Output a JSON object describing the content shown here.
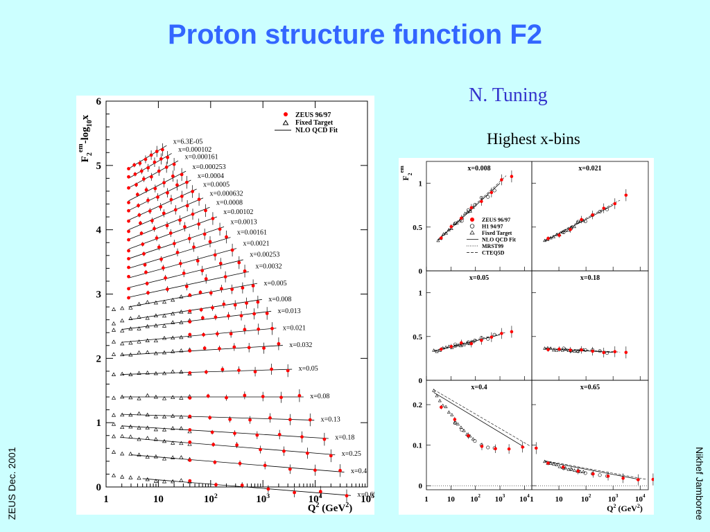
{
  "page": {
    "title": "Proton structure function F2",
    "author": "N. Tuning",
    "subtitle": "Highest x-bins",
    "left_footer": "ZEUS Dec. 2001",
    "right_footer": "Nikhef Jamboree"
  },
  "chart_data": [
    {
      "type": "scatter",
      "ylabel": "F2em-log10x",
      "xlabel": "Q2 (GeV2)",
      "xscale": "log",
      "xlim": [
        1,
        100000
      ],
      "ylim": [
        0,
        6
      ],
      "xticks": [
        "1",
        "10",
        "10^2",
        "10^3",
        "10^4",
        "10^5"
      ],
      "yticks": [
        "0",
        "1",
        "2",
        "3",
        "4",
        "5",
        "6"
      ],
      "legend": {
        "placement": "top-right",
        "entries": [
          "ZEUS 96/97",
          "Fixed Target",
          "NLO QCD Fit"
        ]
      },
      "colors": {
        "zeus": "#ff0000",
        "fixed": "#000000",
        "fit": "#000000"
      },
      "bins": [
        {
          "x": "x=6.3E-05",
          "q2": [
            2.7,
            12
          ],
          "offset": 5.1
        },
        {
          "x": "x=0.000102",
          "q2": [
            2.7,
            15
          ],
          "offset": 4.95
        },
        {
          "x": "x=0.000161",
          "q2": [
            2.7,
            20
          ],
          "offset": 4.8
        },
        {
          "x": "x=0.000253",
          "q2": [
            2.7,
            28
          ],
          "offset": 4.6
        },
        {
          "x": "x=0.0004",
          "q2": [
            2.7,
            35
          ],
          "offset": 4.45
        },
        {
          "x": "x=0.0005",
          "q2": [
            2.7,
            45
          ],
          "offset": 4.3
        },
        {
          "x": "x=0.000632",
          "q2": [
            2.7,
            60
          ],
          "offset": 4.15
        },
        {
          "x": "x=0.0008",
          "q2": [
            2.7,
            80
          ],
          "offset": 4.0
        },
        {
          "x": "x=0.00102",
          "q2": [
            2.7,
            110
          ],
          "offset": 3.85
        },
        {
          "x": "x=0.0013",
          "q2": [
            2.7,
            150
          ],
          "offset": 3.7
        },
        {
          "x": "x=0.00161",
          "q2": [
            2.7,
            200
          ],
          "offset": 3.55
        },
        {
          "x": "x=0.0021",
          "q2": [
            2.7,
            260
          ],
          "offset": 3.4
        },
        {
          "x": "x=0.00253",
          "q2": [
            2.7,
            350
          ],
          "offset": 3.25
        },
        {
          "x": "x=0.0032",
          "q2": [
            2.7,
            450
          ],
          "offset": 3.1
        },
        {
          "x": "x=0.005",
          "q2": [
            2.7,
            650
          ],
          "offset": 2.95
        },
        {
          "x": "x=0.008",
          "q2": [
            2.7,
            800
          ],
          "offset": 2.75
        },
        {
          "x": "x=0.013",
          "q2": [
            2.0,
            1200
          ],
          "offset": 2.6
        },
        {
          "x": "x=0.021",
          "q2": [
            2.0,
            1500
          ],
          "offset": 2.4
        },
        {
          "x": "x=0.032",
          "q2": [
            2.0,
            2000
          ],
          "offset": 2.2
        },
        {
          "x": "x=0.05",
          "q2": [
            2.0,
            3000
          ],
          "offset": 1.9
        },
        {
          "x": "x=0.08",
          "q2": [
            2.0,
            5000
          ],
          "offset": 1.55
        },
        {
          "x": "x=0.13",
          "q2": [
            2.0,
            8000
          ],
          "offset": 1.28
        },
        {
          "x": "x=0.18",
          "q2": [
            2.0,
            15000
          ],
          "offset": 1.1
        },
        {
          "x": "x=0.25",
          "q2": [
            2.0,
            20000
          ],
          "offset": 0.92
        },
        {
          "x": "x=0.4",
          "q2": [
            3.0,
            30000
          ],
          "offset": 0.65
        },
        {
          "x": "x=0.65",
          "q2": [
            5.0,
            40000
          ],
          "offset": 0.28
        }
      ]
    },
    {
      "type": "scatter",
      "ylabel": "F2em",
      "xlabel": "Q2 (GeV2)",
      "xscale": "log",
      "xticks": [
        "1",
        "10",
        "10^2",
        "10^3",
        "10^4"
      ],
      "legend": {
        "placement": "top-left panel, lower right",
        "entries": [
          "ZEUS 96/97",
          "H1 94/97",
          "Fixed Target",
          "NLO QCD Fit",
          "MRST99",
          "CTEQ5D"
        ]
      },
      "panels": [
        {
          "label": "x=0.008",
          "ylim": [
            0,
            1.25
          ],
          "yticks": [
            "0",
            "0.5",
            "1"
          ],
          "f2_at_q2": [
            [
              3,
              0.35
            ],
            [
              1000,
              1.0
            ]
          ]
        },
        {
          "label": "x=0.021",
          "ylim": [
            0,
            1.25
          ],
          "yticks": [],
          "f2_at_q2": [
            [
              3,
              0.34
            ],
            [
              1000,
              0.75
            ]
          ]
        },
        {
          "label": "x=0.05",
          "ylim": [
            0,
            1.25
          ],
          "yticks": [
            "0",
            "0.5",
            "1"
          ],
          "f2_at_q2": [
            [
              2,
              0.33
            ],
            [
              1000,
              0.52
            ]
          ]
        },
        {
          "label": "x=0.18",
          "ylim": [
            0,
            1.25
          ],
          "yticks": [],
          "f2_at_q2": [
            [
              3,
              0.36
            ],
            [
              1000,
              0.32
            ]
          ]
        },
        {
          "label": "x=0.4",
          "ylim": [
            -0.01,
            0.26
          ],
          "yticks": [
            "0",
            "0.1",
            "0.2"
          ],
          "f2_at_q2": [
            [
              2,
              0.23
            ],
            [
              10000,
              0.095
            ]
          ]
        },
        {
          "label": "x=0.65",
          "ylim": [
            -0.01,
            0.26
          ],
          "yticks": [],
          "f2_at_q2": [
            [
              3,
              0.06
            ],
            [
              10000,
              0.015
            ]
          ]
        }
      ]
    }
  ]
}
